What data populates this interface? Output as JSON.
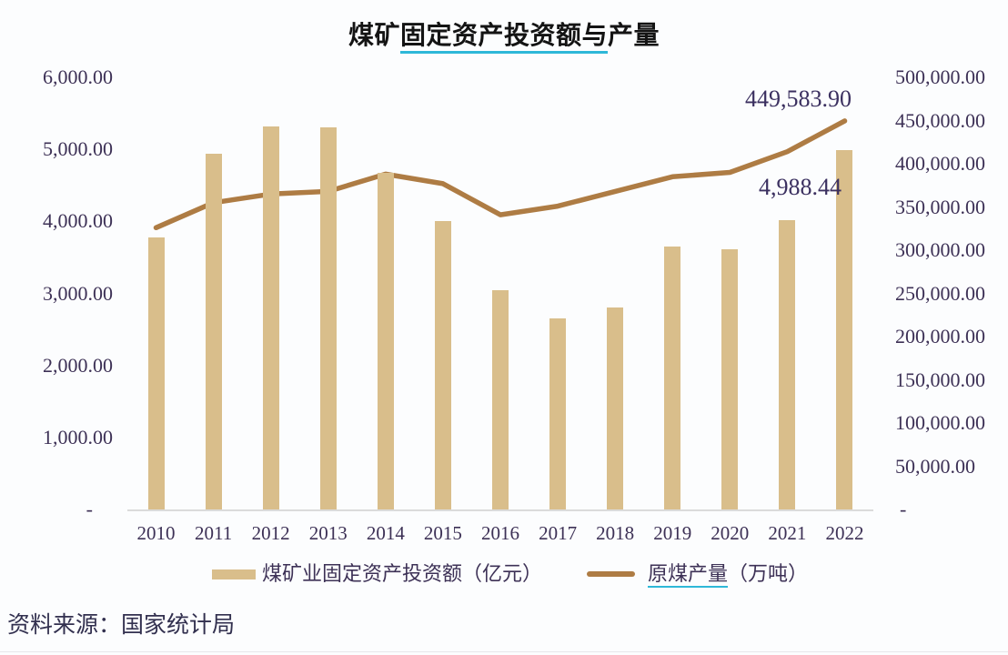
{
  "title": {
    "prefix": "煤矿",
    "underlined": "固定资产投资额与",
    "suffix": "产量"
  },
  "source_note": "资料来源：国家统计局",
  "legend": {
    "bar": {
      "label": "煤矿业固定资产投资额（亿元）"
    },
    "line": {
      "label_underlined": "原煤产量",
      "label_rest": "（万吨）"
    }
  },
  "chart_data": {
    "type": "bar",
    "subtype": "combo bar+line, dual axis",
    "title": "煤矿固定资产投资额与产量",
    "categories": [
      "2010",
      "2011",
      "2012",
      "2013",
      "2014",
      "2015",
      "2016",
      "2017",
      "2018",
      "2019",
      "2020",
      "2021",
      "2022"
    ],
    "series": [
      {
        "name": "煤矿业固定资产投资额（亿元）",
        "type": "bar",
        "axis": "left",
        "color": "#D9BE8B",
        "values": [
          3780,
          4940,
          5320,
          5300,
          4680,
          4010,
          3040,
          2650,
          2810,
          3650,
          3610,
          4020,
          4988.44
        ]
      },
      {
        "name": "原煤产量（万吨）",
        "type": "line",
        "axis": "right",
        "color": "#AE7C44",
        "values": [
          326000,
          355000,
          365000,
          368000,
          388000,
          377000,
          341000,
          351000,
          368000,
          385000,
          390000,
          414000,
          449583.9
        ]
      }
    ],
    "left_axis": {
      "min": 0,
      "max": 6000,
      "step": 1000,
      "labels": [
        "6,000.00",
        "5,000.00",
        "4,000.00",
        "3,000.00",
        "2,000.00",
        "1,000.00",
        "-"
      ]
    },
    "right_axis": {
      "min": 0,
      "max": 500000,
      "step": 50000,
      "labels": [
        "500,000.00",
        "450,000.00",
        "400,000.00",
        "350,000.00",
        "300,000.00",
        "250,000.00",
        "200,000.00",
        "150,000.00",
        "100,000.00",
        "50,000.00",
        "-"
      ]
    },
    "data_labels": [
      {
        "series": "line",
        "category": "2022",
        "text": "449,583.90"
      },
      {
        "series": "bar",
        "category": "2022",
        "text": "4,988.44"
      }
    ],
    "grid": false,
    "legend_position": "bottom",
    "colors": {
      "bar": "#D9BE8B",
      "line": "#AE7C44",
      "axis_text": "#3D3156",
      "annotation_text": "#3B3060",
      "title_text": "#141414",
      "underline": "#2EB8D8",
      "axis_line": "#DBDBDB",
      "background": "#FCFDFE"
    }
  }
}
